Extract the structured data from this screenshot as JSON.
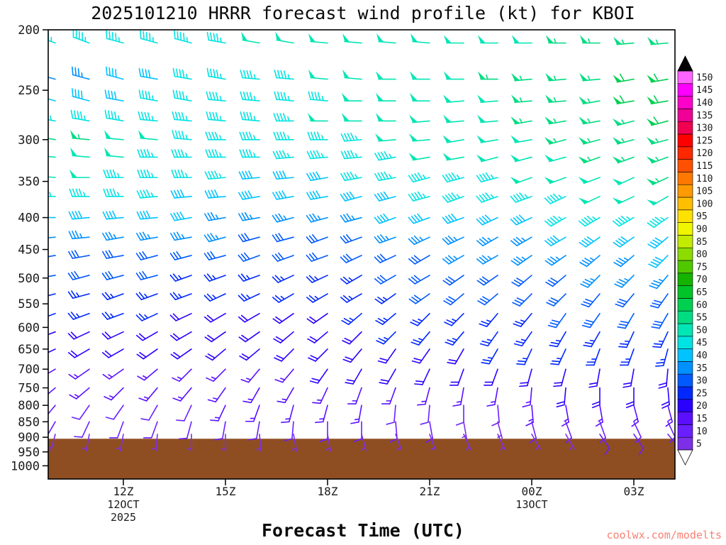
{
  "chart": {
    "title": "2025101210 HRRR forecast wind profile (kt) for KBOI",
    "xlabel": "Forecast Time (UTC)",
    "watermark": "coolwx.com/modelts"
  },
  "chart_data": {
    "type": "scatter",
    "subtype": "wind-barb-time-height-profile",
    "title": "2025101210 HRRR forecast wind profile (kt) for KBOI",
    "xlabel": "Forecast Time (UTC)",
    "y_scale": "log-pressure",
    "ylim": [
      200,
      1050
    ],
    "yticks": [
      200,
      250,
      300,
      350,
      400,
      450,
      500,
      550,
      600,
      650,
      700,
      750,
      800,
      850,
      900,
      950,
      1000
    ],
    "x_hours": [
      "10Z",
      "11Z",
      "12Z",
      "13Z",
      "14Z",
      "15Z",
      "16Z",
      "17Z",
      "18Z",
      "19Z",
      "20Z",
      "21Z",
      "22Z",
      "23Z",
      "00Z",
      "01Z",
      "02Z",
      "03Z",
      "04Z"
    ],
    "xticks": [
      {
        "index": 2,
        "label": "12Z"
      },
      {
        "index": 5,
        "label": "15Z"
      },
      {
        "index": 8,
        "label": "18Z"
      },
      {
        "index": 11,
        "label": "21Z"
      },
      {
        "index": 14,
        "label": "00Z"
      },
      {
        "index": 17,
        "label": "03Z"
      }
    ],
    "x_date_labels": [
      {
        "index": 2,
        "line1": "12OCT",
        "line2": "2025"
      },
      {
        "index": 14,
        "line1": "13OCT",
        "line2": ""
      }
    ],
    "levels_hPa": [
      210,
      240,
      260,
      280,
      300,
      320,
      345,
      370,
      400,
      430,
      460,
      495,
      530,
      570,
      610,
      650,
      700,
      750,
      800,
      850,
      890
    ],
    "speeds_kt": [
      [
        45,
        45,
        45,
        45,
        45,
        45,
        50,
        50,
        50,
        50,
        50,
        50,
        50,
        50,
        50,
        55,
        55,
        55,
        55
      ],
      [
        35,
        35,
        40,
        40,
        45,
        45,
        45,
        45,
        50,
        50,
        50,
        50,
        50,
        55,
        55,
        55,
        55,
        60,
        60
      ],
      [
        40,
        40,
        40,
        45,
        45,
        45,
        45,
        45,
        45,
        50,
        50,
        50,
        50,
        50,
        55,
        55,
        55,
        60,
        60
      ],
      [
        45,
        45,
        45,
        45,
        45,
        45,
        45,
        45,
        50,
        50,
        50,
        50,
        50,
        50,
        55,
        55,
        55,
        55,
        60
      ],
      [
        55,
        55,
        50,
        50,
        45,
        45,
        45,
        45,
        45,
        45,
        50,
        50,
        50,
        50,
        50,
        55,
        55,
        55,
        55
      ],
      [
        50,
        50,
        50,
        45,
        45,
        45,
        45,
        45,
        45,
        45,
        45,
        50,
        50,
        50,
        50,
        50,
        55,
        55,
        55
      ],
      [
        50,
        50,
        45,
        45,
        45,
        45,
        40,
        40,
        40,
        45,
        45,
        45,
        45,
        45,
        50,
        50,
        50,
        50,
        55
      ],
      [
        45,
        45,
        45,
        45,
        40,
        40,
        40,
        40,
        40,
        40,
        40,
        45,
        45,
        45,
        45,
        45,
        50,
        50,
        50
      ],
      [
        40,
        40,
        40,
        40,
        40,
        35,
        35,
        35,
        35,
        35,
        40,
        40,
        40,
        40,
        40,
        45,
        45,
        45,
        45
      ],
      [
        35,
        35,
        35,
        35,
        35,
        35,
        30,
        30,
        30,
        30,
        35,
        35,
        35,
        35,
        35,
        40,
        40,
        40,
        40
      ],
      [
        30,
        30,
        30,
        30,
        30,
        30,
        30,
        30,
        30,
        30,
        30,
        30,
        35,
        35,
        35,
        35,
        35,
        35,
        40
      ],
      [
        30,
        30,
        30,
        30,
        25,
        25,
        25,
        25,
        25,
        25,
        30,
        30,
        30,
        30,
        30,
        30,
        35,
        35,
        35
      ],
      [
        25,
        25,
        25,
        25,
        25,
        25,
        25,
        25,
        25,
        25,
        25,
        30,
        30,
        30,
        30,
        30,
        30,
        30,
        30
      ],
      [
        25,
        25,
        25,
        25,
        20,
        20,
        20,
        20,
        20,
        25,
        25,
        25,
        25,
        25,
        25,
        30,
        30,
        30,
        30
      ],
      [
        20,
        20,
        20,
        20,
        20,
        20,
        20,
        20,
        20,
        20,
        25,
        25,
        25,
        25,
        25,
        25,
        25,
        25,
        25
      ],
      [
        20,
        20,
        20,
        20,
        20,
        20,
        20,
        20,
        20,
        20,
        20,
        20,
        20,
        25,
        25,
        25,
        25,
        25,
        25
      ],
      [
        15,
        15,
        15,
        15,
        15,
        15,
        15,
        15,
        20,
        20,
        20,
        20,
        20,
        20,
        20,
        20,
        20,
        20,
        20
      ],
      [
        15,
        15,
        15,
        15,
        15,
        15,
        15,
        15,
        15,
        15,
        15,
        15,
        15,
        15,
        15,
        20,
        20,
        20,
        20
      ],
      [
        10,
        10,
        10,
        10,
        10,
        15,
        15,
        15,
        15,
        15,
        10,
        10,
        10,
        10,
        15,
        15,
        15,
        15,
        15
      ],
      [
        10,
        10,
        10,
        10,
        10,
        10,
        10,
        10,
        10,
        10,
        10,
        10,
        5,
        5,
        10,
        10,
        10,
        10,
        10
      ],
      [
        5,
        5,
        5,
        5,
        5,
        5,
        5,
        5,
        5,
        5,
        5,
        5,
        5,
        5,
        5,
        5,
        10,
        10,
        10
      ]
    ],
    "dirs_deg": [
      [
        290,
        290,
        285,
        285,
        285,
        280,
        280,
        280,
        275,
        275,
        275,
        275,
        270,
        270,
        270,
        270,
        270,
        265,
        265
      ],
      [
        285,
        285,
        285,
        280,
        280,
        280,
        275,
        275,
        275,
        275,
        270,
        270,
        270,
        270,
        265,
        265,
        265,
        260,
        260
      ],
      [
        285,
        285,
        280,
        280,
        280,
        275,
        275,
        275,
        275,
        270,
        270,
        270,
        265,
        265,
        265,
        265,
        260,
        260,
        260
      ],
      [
        280,
        280,
        280,
        275,
        275,
        275,
        275,
        270,
        270,
        270,
        270,
        265,
        265,
        265,
        260,
        260,
        260,
        255,
        255
      ],
      [
        280,
        275,
        275,
        275,
        275,
        270,
        270,
        270,
        270,
        265,
        265,
        265,
        260,
        260,
        260,
        255,
        255,
        255,
        255
      ],
      [
        275,
        275,
        275,
        270,
        270,
        270,
        270,
        265,
        265,
        265,
        260,
        260,
        260,
        255,
        255,
        255,
        250,
        250,
        250
      ],
      [
        275,
        270,
        270,
        270,
        270,
        265,
        265,
        265,
        260,
        260,
        260,
        255,
        255,
        255,
        250,
        250,
        250,
        245,
        245
      ],
      [
        270,
        270,
        270,
        265,
        265,
        265,
        260,
        260,
        260,
        255,
        255,
        255,
        250,
        250,
        250,
        245,
        245,
        245,
        240
      ],
      [
        270,
        265,
        265,
        265,
        260,
        260,
        260,
        255,
        255,
        255,
        250,
        250,
        250,
        245,
        245,
        240,
        240,
        240,
        235
      ],
      [
        265,
        265,
        260,
        260,
        260,
        255,
        255,
        255,
        250,
        250,
        250,
        245,
        245,
        240,
        240,
        240,
        235,
        235,
        230
      ],
      [
        260,
        260,
        260,
        255,
        255,
        255,
        250,
        250,
        250,
        245,
        245,
        240,
        240,
        240,
        235,
        235,
        230,
        230,
        225
      ],
      [
        260,
        255,
        255,
        255,
        250,
        250,
        250,
        245,
        245,
        240,
        240,
        240,
        235,
        235,
        230,
        230,
        225,
        225,
        220
      ],
      [
        255,
        255,
        250,
        250,
        250,
        245,
        245,
        240,
        240,
        240,
        235,
        235,
        230,
        230,
        225,
        225,
        220,
        220,
        215
      ],
      [
        250,
        250,
        250,
        245,
        245,
        240,
        240,
        235,
        235,
        230,
        230,
        225,
        225,
        220,
        220,
        215,
        215,
        210,
        210
      ],
      [
        250,
        245,
        245,
        240,
        240,
        235,
        235,
        230,
        230,
        225,
        225,
        220,
        220,
        215,
        215,
        210,
        210,
        205,
        205
      ],
      [
        245,
        240,
        240,
        235,
        235,
        230,
        230,
        225,
        225,
        220,
        215,
        215,
        210,
        210,
        205,
        205,
        200,
        200,
        195
      ],
      [
        240,
        235,
        235,
        230,
        225,
        225,
        220,
        220,
        215,
        210,
        210,
        205,
        200,
        200,
        195,
        195,
        190,
        190,
        185
      ],
      [
        230,
        230,
        225,
        220,
        220,
        215,
        210,
        210,
        205,
        200,
        200,
        195,
        190,
        190,
        185,
        185,
        180,
        180,
        175
      ],
      [
        220,
        215,
        215,
        210,
        205,
        205,
        200,
        195,
        195,
        190,
        185,
        185,
        180,
        175,
        175,
        170,
        170,
        165,
        165
      ],
      [
        210,
        205,
        200,
        200,
        195,
        190,
        190,
        185,
        180,
        180,
        175,
        170,
        170,
        165,
        165,
        160,
        160,
        155,
        155
      ],
      [
        195,
        190,
        190,
        185,
        180,
        180,
        175,
        170,
        170,
        165,
        160,
        160,
        155,
        155,
        150,
        150,
        145,
        145,
        140
      ]
    ],
    "terrain": {
      "top_pressure_hPa": 905,
      "color": "#8f4e22"
    },
    "colorbar": {
      "values": [
        5,
        10,
        15,
        20,
        25,
        30,
        35,
        40,
        45,
        50,
        55,
        60,
        65,
        70,
        75,
        80,
        85,
        90,
        95,
        100,
        105,
        110,
        115,
        120,
        125,
        130,
        135,
        140,
        145,
        150
      ],
      "colors": [
        "#7d2fe8",
        "#6a1fff",
        "#5a10ff",
        "#2a00ff",
        "#0028ff",
        "#005aff",
        "#0090ff",
        "#00c3ff",
        "#00e3e3",
        "#00e6b4",
        "#00dc82",
        "#00d050",
        "#00c428",
        "#14b400",
        "#50c800",
        "#8cdc00",
        "#c3eb00",
        "#f0f500",
        "#ffe100",
        "#ffbe00",
        "#ff9b00",
        "#ff7800",
        "#ff5000",
        "#ff2800",
        "#ff0000",
        "#f00050",
        "#f00096",
        "#ff00c8",
        "#ff00ff",
        "#ff64ff"
      ],
      "over_color": "#000000",
      "under_color": "#ffffff"
    }
  }
}
